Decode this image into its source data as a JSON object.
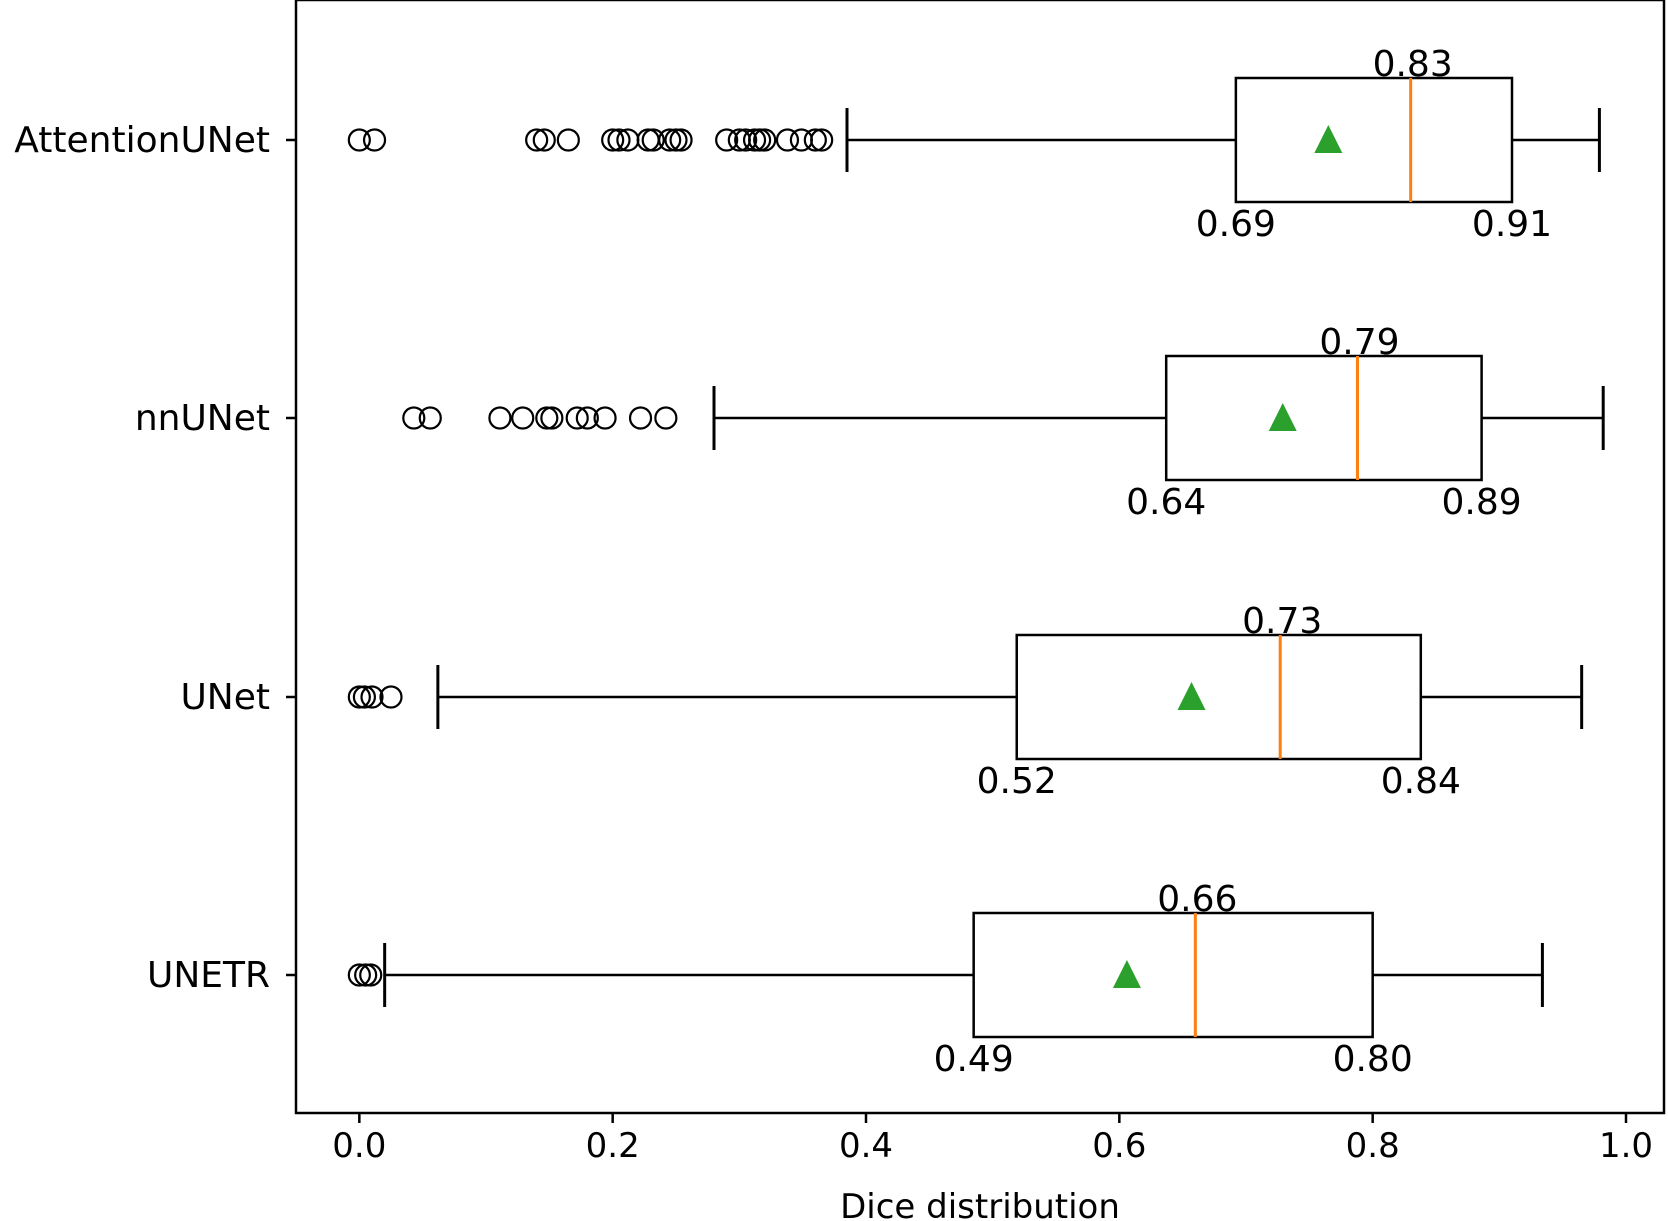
{
  "chart_data": {
    "type": "boxplot",
    "orientation": "horizontal",
    "title": "",
    "xlabel": "Dice distribution",
    "ylabel": "",
    "xlim": [
      -0.05,
      1.03
    ],
    "xticks": [
      0.0,
      0.2,
      0.4,
      0.6,
      0.8,
      1.0
    ],
    "xtick_labels": [
      "0.0",
      "0.2",
      "0.4",
      "0.6",
      "0.8",
      "1.0"
    ],
    "grid": false,
    "legend": "none",
    "colors": {
      "box": "#000000",
      "median": "#ff7f0e",
      "mean": "#2ca02c",
      "outlier": "#000000"
    },
    "categories": [
      "AttentionUNet",
      "nnUNet",
      "UNet",
      "UNETR"
    ],
    "boxes": [
      {
        "name": "AttentionUNet",
        "whisker_low": 0.385,
        "q1": 0.692,
        "median": 0.83,
        "q3": 0.91,
        "whisker_high": 0.979,
        "mean": 0.765,
        "q1_label": "0.69",
        "median_label": "0.83",
        "q3_label": "0.91",
        "outliers": [
          0.0,
          0.012,
          0.14,
          0.146,
          0.165,
          0.2,
          0.205,
          0.212,
          0.228,
          0.232,
          0.245,
          0.25,
          0.254,
          0.29,
          0.3,
          0.305,
          0.312,
          0.316,
          0.32,
          0.338,
          0.349,
          0.36,
          0.365
        ]
      },
      {
        "name": "nnUNet",
        "whisker_low": 0.28,
        "q1": 0.637,
        "median": 0.788,
        "q3": 0.886,
        "whisker_high": 0.982,
        "mean": 0.729,
        "q1_label": "0.64",
        "median_label": "0.79",
        "q3_label": "0.89",
        "outliers": [
          0.043,
          0.056,
          0.111,
          0.129,
          0.148,
          0.152,
          0.172,
          0.18,
          0.194,
          0.222,
          0.242
        ]
      },
      {
        "name": "UNet",
        "whisker_low": 0.062,
        "q1": 0.519,
        "median": 0.727,
        "q3": 0.838,
        "whisker_high": 0.965,
        "mean": 0.657,
        "q1_label": "0.52",
        "median_label": "0.73",
        "q3_label": "0.84",
        "outliers": [
          0.0,
          0.004,
          0.01,
          0.025
        ]
      },
      {
        "name": "UNETR",
        "whisker_low": 0.02,
        "q1": 0.485,
        "median": 0.66,
        "q3": 0.8,
        "whisker_high": 0.934,
        "mean": 0.606,
        "q1_label": "0.49",
        "median_label": "0.66",
        "q3_label": "0.80",
        "outliers": [
          0.0,
          0.005,
          0.009
        ]
      }
    ]
  }
}
